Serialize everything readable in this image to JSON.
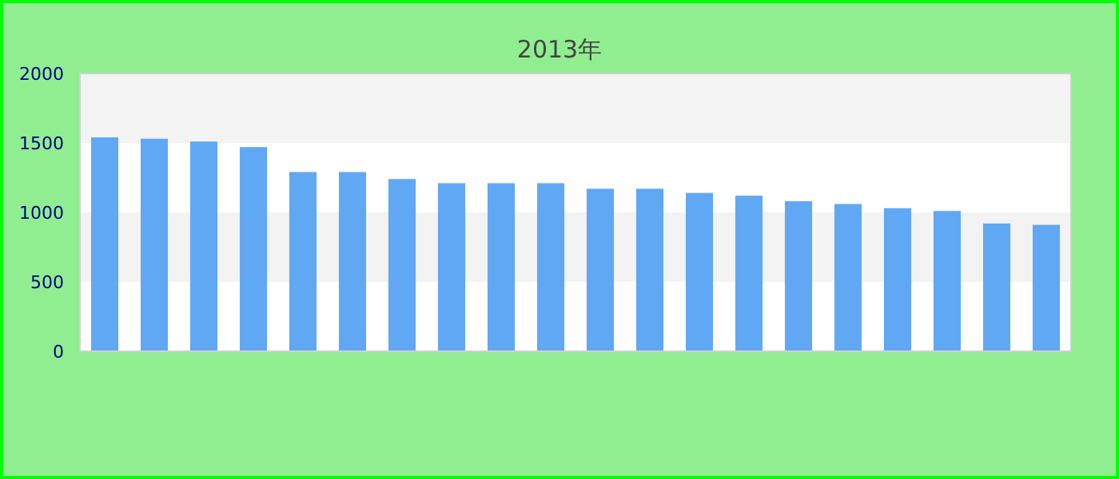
{
  "chart_data": {
    "type": "bar",
    "subtitle": "2013年",
    "categories": [
      null,
      null,
      null,
      null,
      null,
      null,
      null,
      null,
      null,
      null,
      null,
      null,
      null,
      null,
      null,
      null,
      null,
      null,
      null,
      null
    ],
    "values": [
      1540,
      1530,
      1510,
      1470,
      1290,
      1290,
      1240,
      1210,
      1210,
      1210,
      1170,
      1170,
      1140,
      1120,
      1080,
      1060,
      1030,
      1010,
      920,
      910
    ],
    "color": "#60a8f4",
    "ylim": [
      0,
      2000
    ],
    "yticks": [
      0,
      500,
      1000,
      1500,
      2000
    ],
    "bands": [
      {
        "axis": "y",
        "from": 500,
        "to": 1000,
        "color": "#f3f3f3"
      },
      {
        "axis": "y",
        "from": 1500,
        "to": 2000,
        "color": "#f3f3f3"
      }
    ]
  }
}
